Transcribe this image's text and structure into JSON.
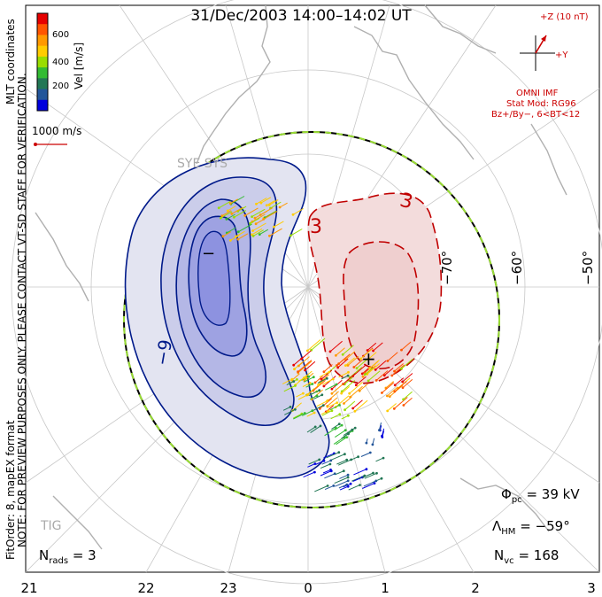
{
  "title": "31/Dec/2003 14:00–14:02 UT",
  "colorbar": {
    "label": "Vel [m/s]",
    "ticks": [
      "600",
      "400",
      "200"
    ],
    "colors": [
      "#e60000",
      "#ff5500",
      "#ff9900",
      "#ffcc00",
      "#99dd00",
      "#33bb33",
      "#227755",
      "#225599",
      "#0000dd"
    ]
  },
  "mlt_label": "MLT coordinates",
  "scale_vector": {
    "label": "1000 m/s"
  },
  "note_line1": "NOTE: FOR PREVIEW PURPOSES ONLY. PLEASE CONTACT VT-SD STAFF FOR VERIFICATION.",
  "note_line2": "FitOrder: 8, mapEX format",
  "imf": {
    "z_label": "+Z (10 nT)",
    "y_label": "+Y",
    "omni": "OMNI IMF",
    "stat_mod": "Stat Mod: RG96",
    "bz_by": "Bz+/By−, 6<BT<12"
  },
  "station_labels": {
    "sye_sys": "SYE SYS",
    "tig": "TIG"
  },
  "latitude_labels": [
    "−70°",
    "−60°",
    "−50°"
  ],
  "contour_labels": {
    "neg": "−9",
    "pos1": "3",
    "pos2": "3"
  },
  "markers": {
    "minus": "−",
    "plus": "+"
  },
  "x_ticks": [
    "21",
    "22",
    "23",
    "0",
    "1",
    "2",
    "3"
  ],
  "stats": {
    "phi_symbol": "Φ",
    "phi_sub": "pc",
    "phi_value": "= 39 kV",
    "lambda_symbol": "Λ",
    "lambda_sub": "HM",
    "lambda_value": "= −59°",
    "nvc_symbol": "N",
    "nvc_sub": "vc",
    "nvc_value": "= 168",
    "nrads_symbol": "N",
    "nrads_sub": "rads",
    "nrads_value": "= 3"
  }
}
